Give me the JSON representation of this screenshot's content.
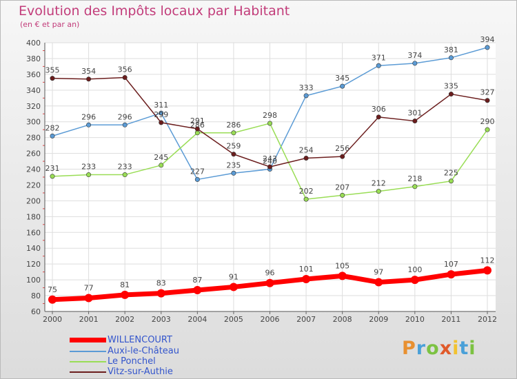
{
  "title": "Evolution des Impôts locaux par Habitant",
  "subtitle": "(en € et par an)",
  "logo": {
    "text": "Proxiti",
    "letters": [
      {
        "ch": "P",
        "color": "#e89030"
      },
      {
        "ch": "r",
        "color": "#4aa0d8"
      },
      {
        "ch": "o",
        "color": "#7cc242"
      },
      {
        "ch": "x",
        "color": "#e05a2a"
      },
      {
        "ch": "i",
        "color": "#f2c230"
      },
      {
        "ch": "t",
        "color": "#4aa0d8"
      },
      {
        "ch": "i",
        "color": "#7cc242"
      }
    ]
  },
  "chart_data": {
    "type": "line",
    "title": "Evolution des Impôts locaux par Habitant",
    "subtitle": "(en € et par an)",
    "x": [
      "2000",
      "2001",
      "2002",
      "2003",
      "2004",
      "2005",
      "2006",
      "2007",
      "2008",
      "2009",
      "2010",
      "2011",
      "2012"
    ],
    "ylim": [
      60,
      400
    ],
    "yticks": [
      60,
      80,
      100,
      120,
      140,
      160,
      180,
      200,
      220,
      240,
      260,
      280,
      300,
      320,
      340,
      360,
      380,
      400
    ],
    "grid": true,
    "legend_position": "bottom-left",
    "series": [
      {
        "name": "WILLENCOURT",
        "color": "#ff0000",
        "values": [
          75,
          77,
          81,
          83,
          87,
          91,
          96,
          101,
          105,
          97,
          100,
          107,
          112
        ]
      },
      {
        "name": "Auxi-le-Château",
        "color": "#5b9bd5",
        "values": [
          282,
          296,
          296,
          311,
          227,
          235,
          240,
          333,
          345,
          371,
          374,
          381,
          394
        ]
      },
      {
        "name": "Le Ponchel",
        "color": "#99dd55",
        "values": [
          231,
          233,
          233,
          245,
          286,
          286,
          298,
          202,
          207,
          212,
          218,
          225,
          290
        ]
      },
      {
        "name": "Vitz-sur-Authie",
        "color": "#6b1d1d",
        "values": [
          355,
          354,
          356,
          299,
          291,
          259,
          243,
          254,
          256,
          306,
          301,
          335,
          327
        ]
      }
    ]
  }
}
